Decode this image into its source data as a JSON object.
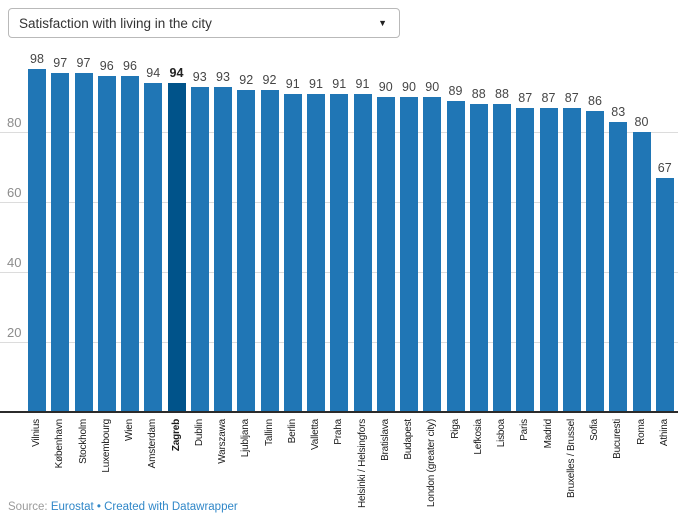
{
  "dropdown": {
    "selected": "Satisfaction with living in the city"
  },
  "chart_data": {
    "type": "bar",
    "title": "Satisfaction with living in the city",
    "categories": [
      "Vilnius",
      "København",
      "Stockholm",
      "Luxembourg",
      "Wien",
      "Amsterdam",
      "Zagreb",
      "Dublin",
      "Warszawa",
      "Ljubljana",
      "Tallinn",
      "Berlin",
      "Valletta",
      "Praha",
      "Helsinki / Helsingfors",
      "Bratislava",
      "Budapest",
      "London (greater city)",
      "Riga",
      "Lefkosia",
      "Lisboa",
      "Paris",
      "Madrid",
      "Bruxelles / Brussel",
      "Sofia",
      "Bucuresti",
      "Roma",
      "Athina"
    ],
    "values": [
      98,
      97,
      97,
      96,
      96,
      94,
      94,
      93,
      93,
      92,
      92,
      91,
      91,
      91,
      91,
      90,
      90,
      90,
      89,
      88,
      88,
      87,
      87,
      87,
      86,
      83,
      80,
      67
    ],
    "highlight": {
      "category": "Zagreb",
      "index": 6
    },
    "yticks": [
      20,
      40,
      60,
      80
    ],
    "ylim": [
      0,
      100
    ],
    "grid": "horizontal",
    "legend": "none",
    "value_labels": true,
    "bar_color": "#2076b5",
    "highlight_color": "#00538a",
    "gridline_color": "#dcdcdc",
    "axis_line_color": "#2b2b2b"
  },
  "footer": {
    "source_label": "Source:",
    "source_link": "Eurostat",
    "separator": "•",
    "credit_link": "Created with Datawrapper"
  }
}
